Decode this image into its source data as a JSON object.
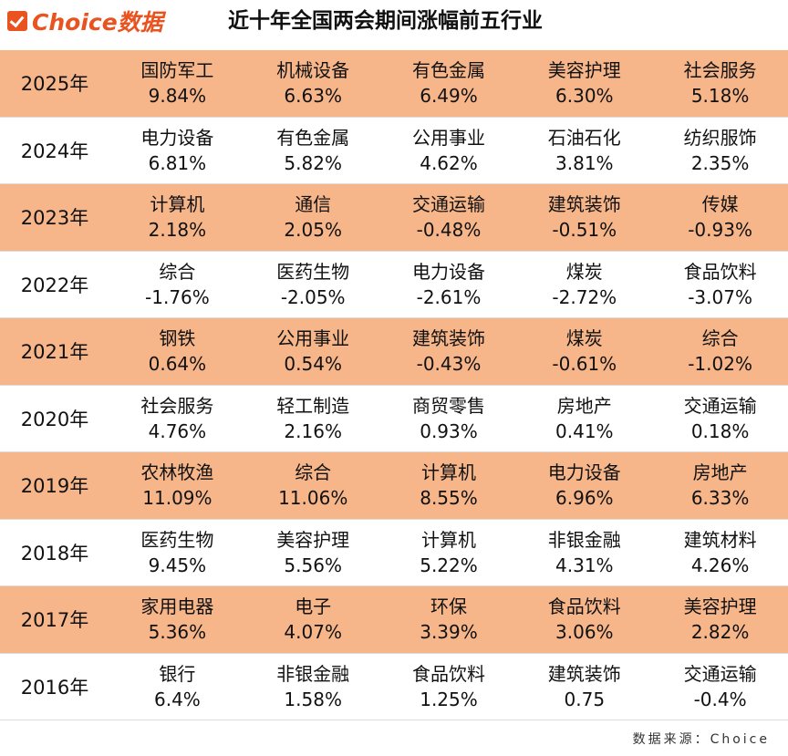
{
  "header": {
    "logo": "Choice数据",
    "title": "近十年全国两会期间涨幅前五行业"
  },
  "table": {
    "rows": [
      {
        "year": "2025年",
        "cells": [
          [
            "国防军工",
            "9.84%"
          ],
          [
            "机械设备",
            "6.63%"
          ],
          [
            "有色金属",
            "6.49%"
          ],
          [
            "美容护理",
            "6.30%"
          ],
          [
            "社会服务",
            "5.18%"
          ]
        ]
      },
      {
        "year": "2024年",
        "cells": [
          [
            "电力设备",
            "6.81%"
          ],
          [
            "有色金属",
            "5.82%"
          ],
          [
            "公用事业",
            "4.62%"
          ],
          [
            "石油石化",
            "3.81%"
          ],
          [
            "纺织服饰",
            "2.35%"
          ]
        ]
      },
      {
        "year": "2023年",
        "cells": [
          [
            "计算机",
            "2.18%"
          ],
          [
            "通信",
            "2.05%"
          ],
          [
            "交通运输",
            "-0.48%"
          ],
          [
            "建筑装饰",
            "-0.51%"
          ],
          [
            "传媒",
            "-0.93%"
          ]
        ]
      },
      {
        "year": "2022年",
        "cells": [
          [
            "综合",
            "-1.76%"
          ],
          [
            "医药生物",
            "-2.05%"
          ],
          [
            "电力设备",
            "-2.61%"
          ],
          [
            "煤炭",
            "-2.72%"
          ],
          [
            "食品饮料",
            "-3.07%"
          ]
        ]
      },
      {
        "year": "2021年",
        "cells": [
          [
            "钢铁",
            "0.64%"
          ],
          [
            "公用事业",
            "0.54%"
          ],
          [
            "建筑装饰",
            "-0.43%"
          ],
          [
            "煤炭",
            "-0.61%"
          ],
          [
            "综合",
            "-1.02%"
          ]
        ]
      },
      {
        "year": "2020年",
        "cells": [
          [
            "社会服务",
            "4.76%"
          ],
          [
            "轻工制造",
            "2.16%"
          ],
          [
            "商贸零售",
            "0.93%"
          ],
          [
            "房地产",
            "0.41%"
          ],
          [
            "交通运输",
            "0.18%"
          ]
        ]
      },
      {
        "year": "2019年",
        "cells": [
          [
            "农林牧渔",
            "11.09%"
          ],
          [
            "综合",
            "11.06%"
          ],
          [
            "计算机",
            "8.55%"
          ],
          [
            "电力设备",
            "6.96%"
          ],
          [
            "房地产",
            "6.33%"
          ]
        ]
      },
      {
        "year": "2018年",
        "cells": [
          [
            "医药生物",
            "9.45%"
          ],
          [
            "美容护理",
            "5.56%"
          ],
          [
            "计算机",
            "5.22%"
          ],
          [
            "非银金融",
            "4.31%"
          ],
          [
            "建筑材料",
            "4.26%"
          ]
        ]
      },
      {
        "year": "2017年",
        "cells": [
          [
            "家用电器",
            "5.36%"
          ],
          [
            "电子",
            "4.07%"
          ],
          [
            "环保",
            "3.39%"
          ],
          [
            "食品饮料",
            "3.06%"
          ],
          [
            "美容护理",
            "2.82%"
          ]
        ]
      },
      {
        "year": "2016年",
        "cells": [
          [
            "银行",
            "6.4%"
          ],
          [
            "非银金融",
            "1.58%"
          ],
          [
            "食品饮料",
            "1.25%"
          ],
          [
            "建筑装饰",
            "0.75"
          ],
          [
            "交通运输",
            "-0.4%"
          ]
        ]
      }
    ]
  },
  "footer": "数据来源：Choice"
}
